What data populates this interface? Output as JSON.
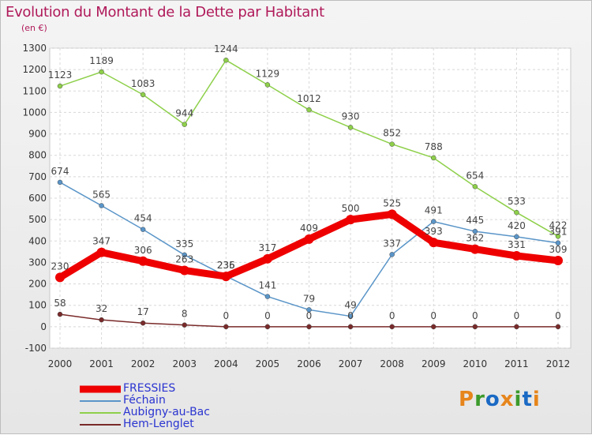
{
  "header": {
    "title": "Evolution du Montant de la Dette par Habitant",
    "subtitle": "(en €)"
  },
  "logo": {
    "text": "Proxiti",
    "colors": [
      "#e6851c",
      "#3c9a2b",
      "#1a69c4",
      "#e6851c",
      "#3c9a2b",
      "#1a69c4",
      "#e6851c"
    ]
  },
  "chart_data": {
    "type": "line",
    "title": "Evolution du Montant de la Dette par Habitant",
    "subtitle": "(en €)",
    "x": [
      "2000",
      "2001",
      "2002",
      "2003",
      "2004",
      "2005",
      "2006",
      "2007",
      "2008",
      "2009",
      "2010",
      "2011",
      "2012"
    ],
    "ylim": [
      -100,
      1300
    ],
    "yticks": [
      "-100",
      "0",
      "100",
      "200",
      "300",
      "400",
      "500",
      "600",
      "700",
      "800",
      "900",
      "1000",
      "1100",
      "1200",
      "1300"
    ],
    "grid": true,
    "legend_position": "bottom-left",
    "series": [
      {
        "name": "FRESSIES",
        "color": "#ee0000",
        "values": [
          230,
          347,
          306,
          263,
          235,
          317,
          409,
          500,
          525,
          393,
          362,
          331,
          309
        ],
        "labels": [
          "230",
          "347",
          "306",
          "263",
          "235",
          "317",
          "409",
          "500",
          "525",
          "393",
          "362",
          "331",
          "309"
        ]
      },
      {
        "name": "Féchain",
        "color": "#5a95c8",
        "values": [
          674,
          565,
          454,
          335,
          236,
          141,
          79,
          49,
          337,
          491,
          445,
          420,
          391
        ],
        "labels": [
          "674",
          "565",
          "454",
          "335",
          "236",
          "141",
          "79",
          "49",
          "337",
          "491",
          "445",
          "420",
          "391"
        ]
      },
      {
        "name": "Aubigny-au-Bac",
        "color": "#8ed04a",
        "values": [
          1123,
          1189,
          1083,
          944,
          1244,
          1129,
          1012,
          930,
          852,
          788,
          654,
          533,
          422
        ],
        "labels": [
          "1123",
          "1189",
          "1083",
          "944",
          "1244",
          "1129",
          "1012",
          "930",
          "852",
          "788",
          "654",
          "533",
          "422"
        ]
      },
      {
        "name": "Hem-Lenglet",
        "color": "#7a2a2a",
        "values": [
          58,
          32,
          17,
          8,
          0,
          0,
          0,
          0,
          0,
          0,
          0,
          0,
          0
        ],
        "labels": [
          "58",
          "32",
          "17",
          "8",
          "0",
          "0",
          "0",
          "0",
          "0",
          "0",
          "0",
          "0",
          "0"
        ]
      }
    ]
  }
}
